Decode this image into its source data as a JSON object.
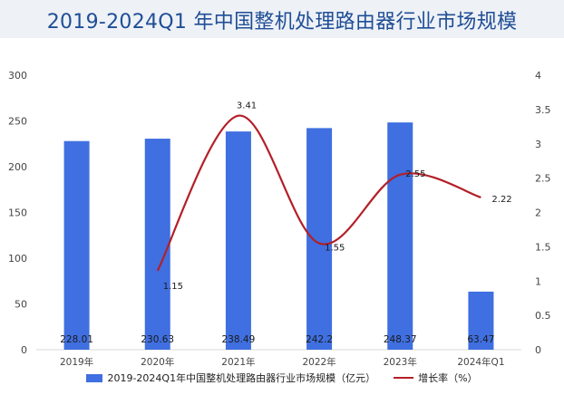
{
  "title": "2019-2024Q1 年中国整机处理路由器行业市场规模",
  "colors": {
    "bar": "#3f6fe0",
    "line": "#b41f27",
    "title_bg": "#eef1f6",
    "title_text": "#1f4e96"
  },
  "chart_data": {
    "type": "bar",
    "categories": [
      "2019年",
      "2020年",
      "2021年",
      "2022年",
      "2023年",
      "2024年Q1"
    ],
    "series": [
      {
        "name": "2019-2024Q1年中国整机处理路由器行业市场规模（亿元）",
        "type": "bar",
        "axis": "left",
        "values": [
          228.01,
          230.63,
          238.49,
          242.2,
          248.37,
          63.47
        ],
        "labels": [
          "228.01",
          "230.63",
          "238.49",
          "242.2",
          "248.37",
          "63.47"
        ]
      },
      {
        "name": "增长率（%）",
        "type": "line",
        "axis": "right",
        "smooth": true,
        "values": [
          null,
          1.15,
          3.41,
          1.55,
          2.55,
          2.22
        ],
        "labels": [
          "",
          "1.15",
          "3.41",
          "1.55",
          "2.55",
          "2.22"
        ]
      }
    ],
    "y_left": {
      "min": 0,
      "max": 300,
      "ticks": [
        "0",
        "50",
        "100",
        "150",
        "200",
        "250",
        "300"
      ]
    },
    "y_right": {
      "min": 0,
      "max": 4,
      "ticks": [
        "0",
        "0.5",
        "1",
        "1.5",
        "2",
        "2.5",
        "3",
        "3.5",
        "4"
      ]
    },
    "grid": false,
    "legend_position": "bottom"
  }
}
